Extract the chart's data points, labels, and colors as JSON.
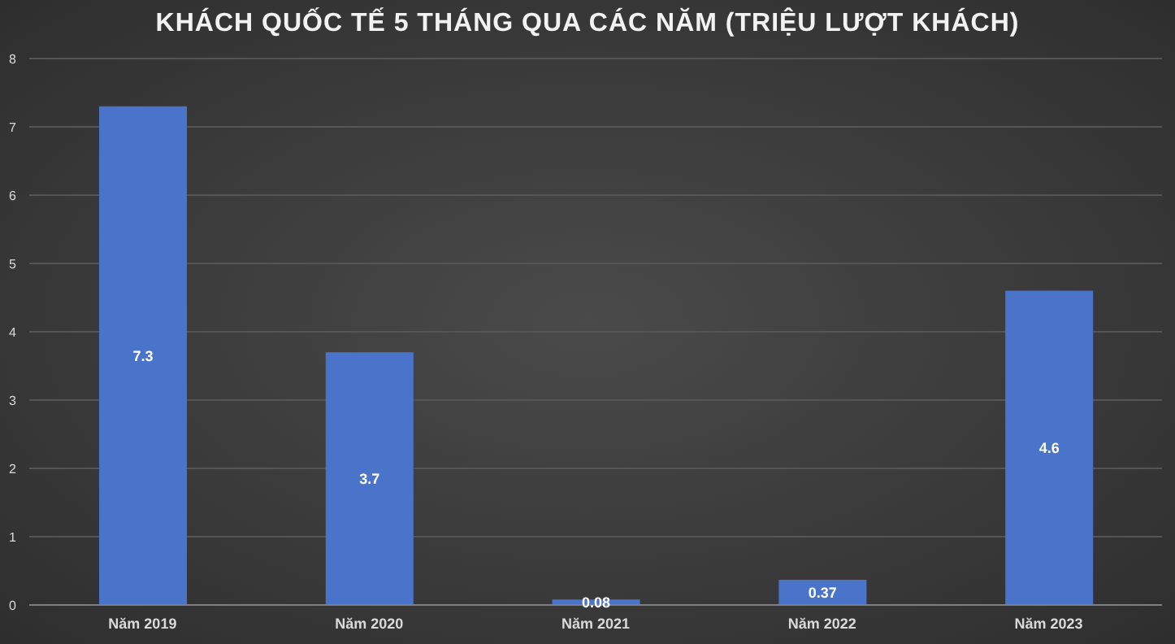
{
  "chart_data": {
    "type": "bar",
    "title": "KHÁCH QUỐC TẾ 5 THÁNG QUA CÁC NĂM (TRIỆU LƯỢT KHÁCH)",
    "categories": [
      "Năm 2019",
      "Năm 2020",
      "Năm 2021",
      "Năm 2022",
      "Năm 2023"
    ],
    "values": [
      7.3,
      3.7,
      0.08,
      0.37,
      4.6
    ],
    "color": "#4a74c9",
    "ylim": [
      0,
      8
    ],
    "yticks": [
      0,
      1,
      2,
      3,
      4,
      5,
      6,
      7,
      8
    ],
    "grid": "y",
    "data_labels": true
  }
}
